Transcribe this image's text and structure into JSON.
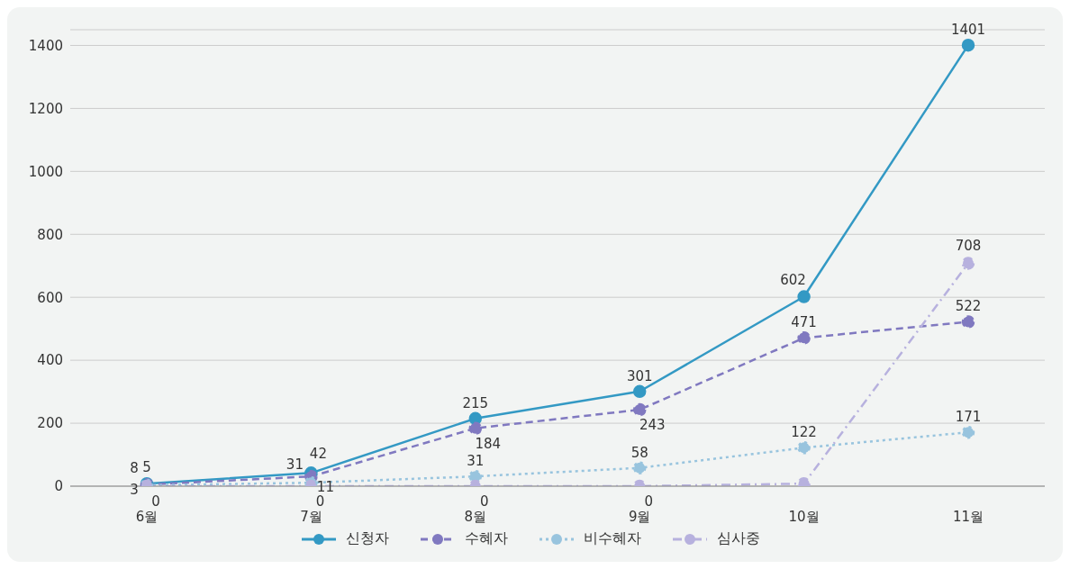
{
  "chart_data": {
    "type": "line",
    "categories": [
      "6월",
      "7월",
      "8월",
      "9월",
      "10월",
      "11월"
    ],
    "series": [
      {
        "name": "신청자",
        "color": "#3399c4",
        "line_style": "solid",
        "values": [
          8,
          42,
          215,
          301,
          602,
          1401
        ],
        "value_labels": [
          "8",
          "42",
          "215",
          "301",
          "602",
          "1401"
        ]
      },
      {
        "name": "수혜자",
        "color": "#8079c0",
        "line_style": "dashed",
        "values": [
          5,
          31,
          184,
          243,
          471,
          522
        ],
        "value_labels": [
          "5",
          "31",
          "184",
          "243",
          "471",
          "522"
        ]
      },
      {
        "name": "비수혜자",
        "color": "#98c4de",
        "line_style": "dotted",
        "values": [
          3,
          11,
          31,
          58,
          122,
          171
        ],
        "value_labels": [
          "3",
          "11",
          "31",
          "58",
          "122",
          "171"
        ]
      },
      {
        "name": "심사중",
        "color": "#b7b1de",
        "line_style": "dashdot",
        "values": [
          0,
          0,
          0,
          0,
          8,
          708
        ],
        "value_labels": [
          "0",
          "0",
          "0",
          "0",
          null,
          "708"
        ]
      }
    ],
    "ylim": [
      0,
      1450
    ],
    "yticks": [
      0,
      200,
      400,
      600,
      800,
      1000,
      1200,
      1400
    ],
    "grid": "y",
    "legend": "bottom",
    "marker": "circle"
  }
}
